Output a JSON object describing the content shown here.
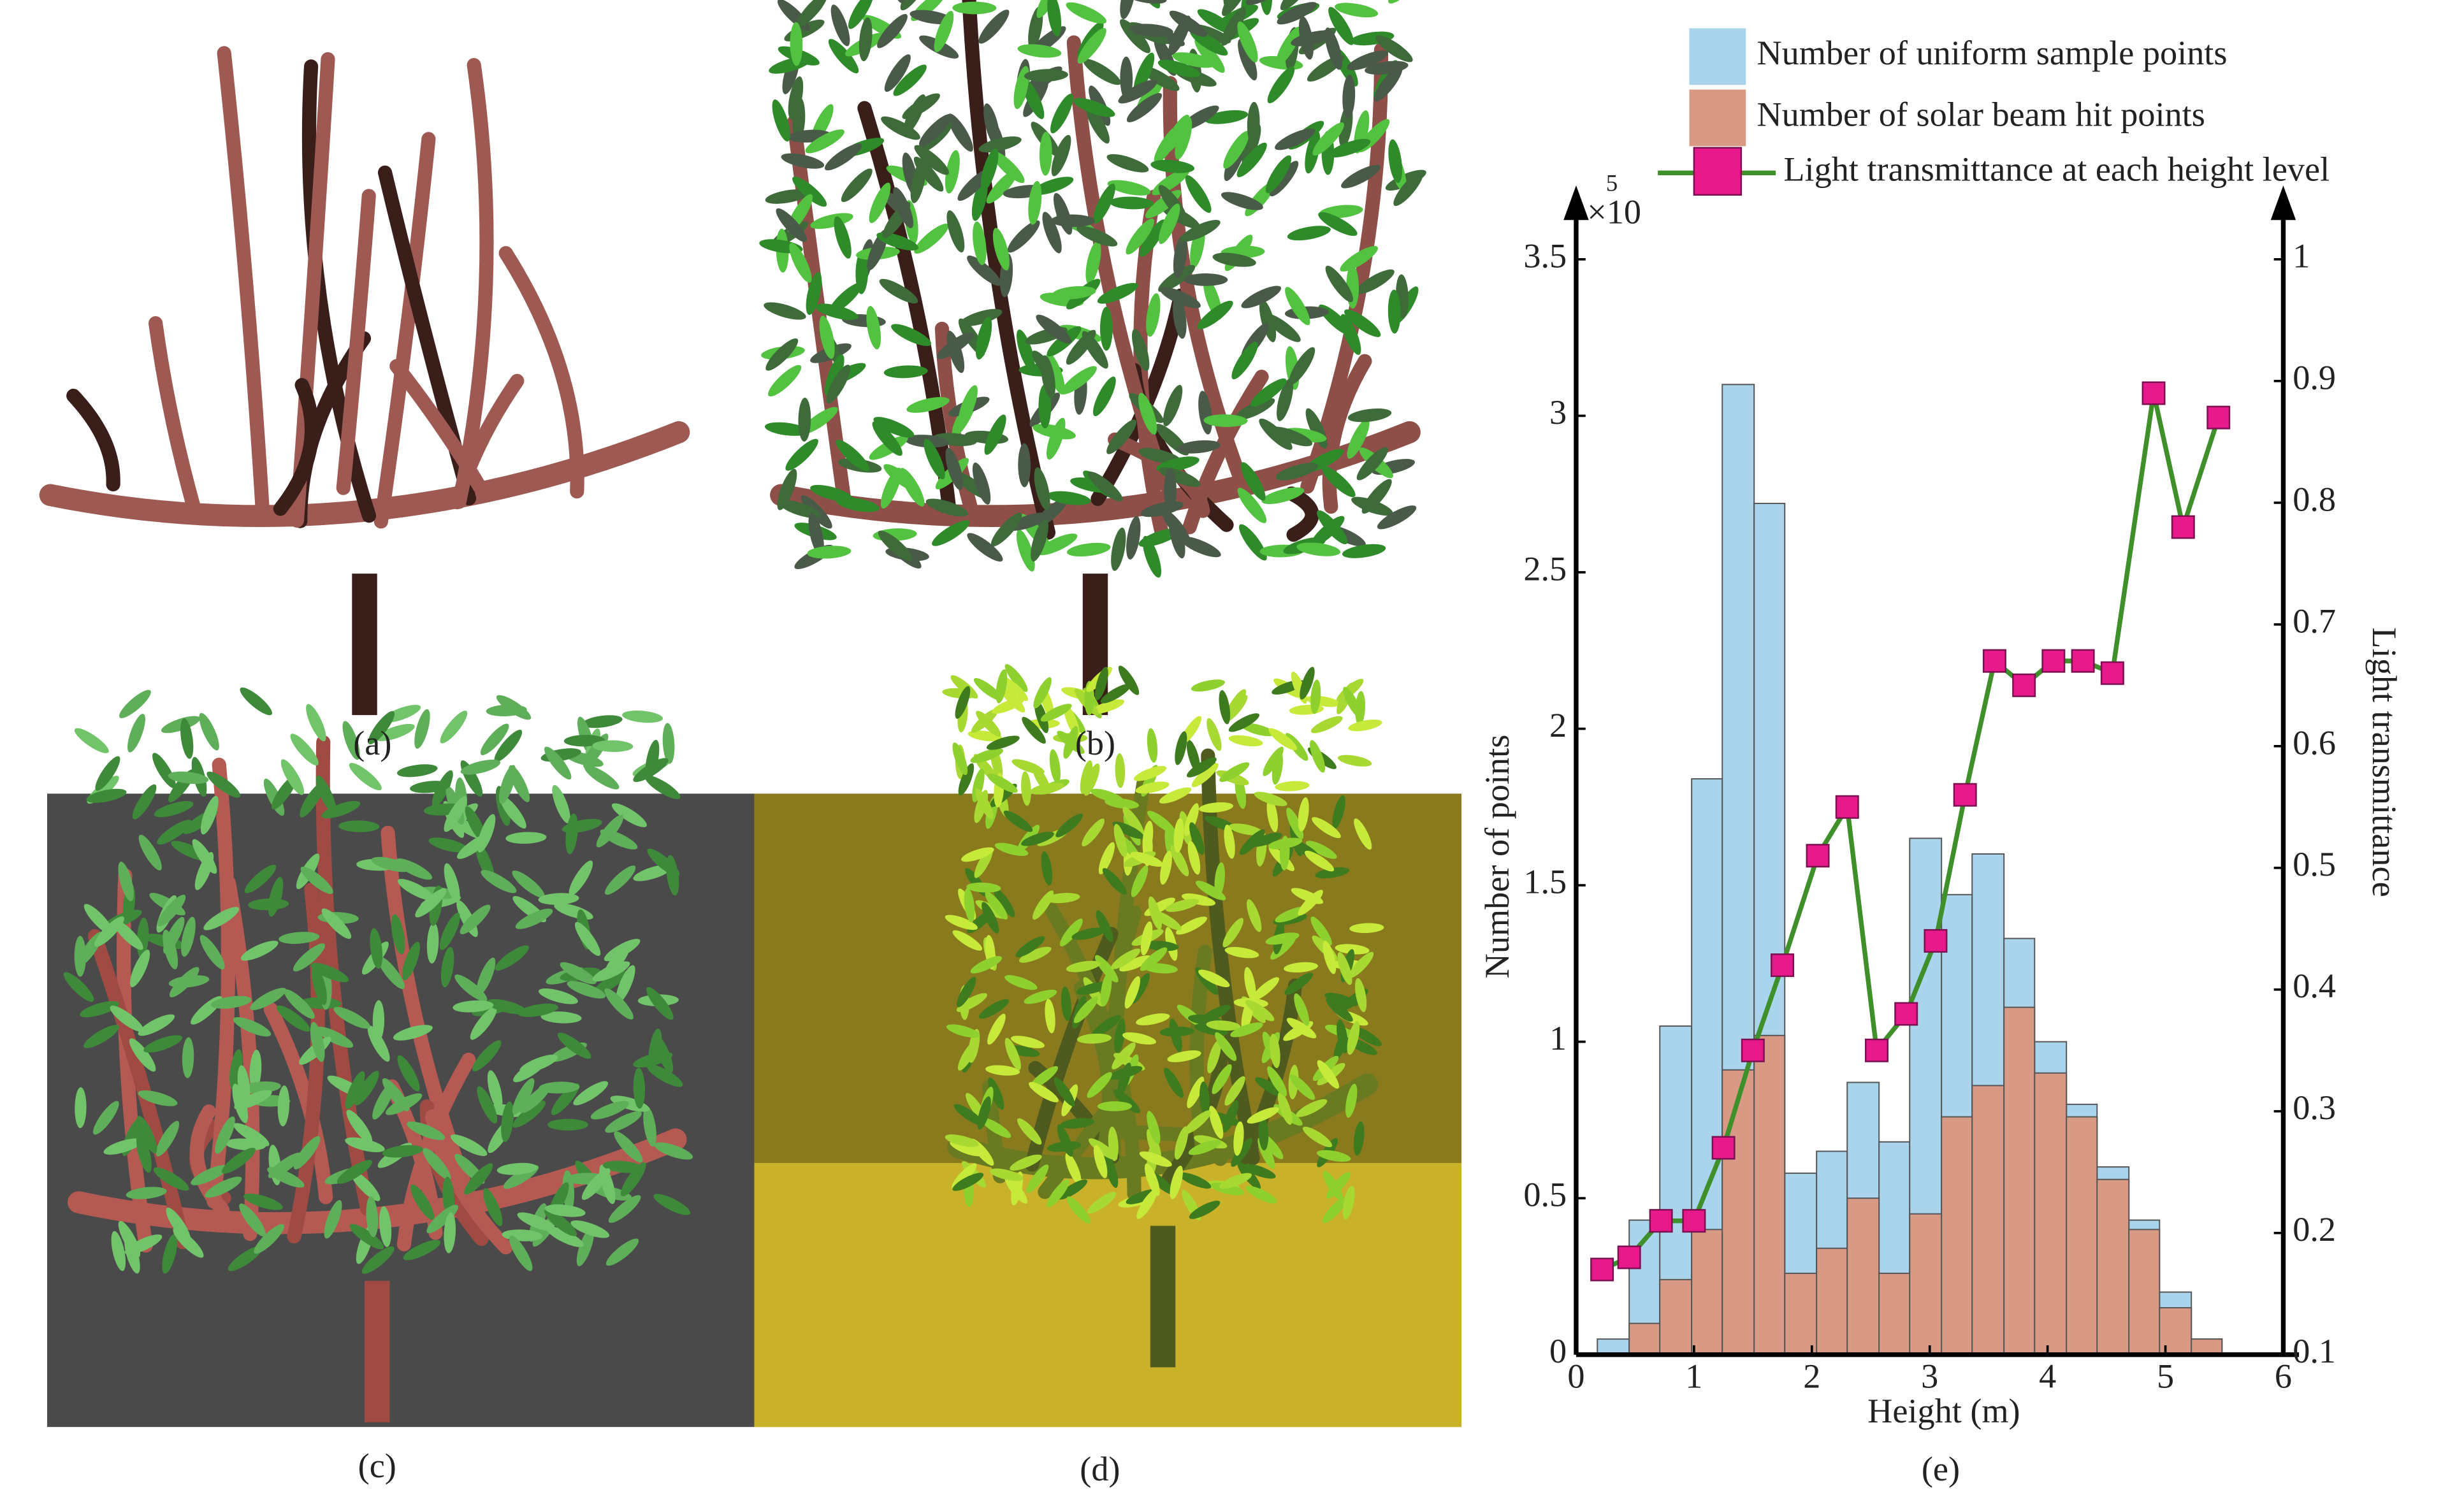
{
  "panel_labels": [
    "(a)",
    "(b)",
    "(c)",
    "(d)",
    "(e)"
  ],
  "chart_data": {
    "type": "histogram",
    "x_label": "Height (m)",
    "y_label": "Number of points",
    "y2_label": "Light transmittance",
    "y_multiplier": "×10",
    "y_multiplier_exp": "5",
    "bins": [
      0.18,
      0.45,
      0.71,
      0.98,
      1.24,
      1.51,
      1.77,
      2.04,
      2.3,
      2.57,
      2.83,
      3.1,
      3.36,
      3.63,
      3.89,
      4.16,
      4.42,
      4.69,
      4.95,
      5.22,
      5.48
    ],
    "series": [
      {
        "name": "Number of uniform sample points",
        "color": "#a9d4ec",
        "values": [
          0.05,
          0.43,
          1.05,
          1.84,
          3.1,
          2.72,
          0.58,
          0.65,
          0.87,
          0.68,
          1.65,
          1.47,
          1.6,
          1.33,
          1.0,
          0.8,
          0.6,
          0.43,
          0.2,
          0.05
        ]
      },
      {
        "name": "Number of solar beam hit points",
        "color": "#d99a85",
        "values": [
          0,
          0.1,
          0.24,
          0.4,
          0.91,
          1.02,
          0.26,
          0.34,
          0.5,
          0.26,
          0.45,
          0.76,
          0.86,
          1.11,
          0.9,
          0.76,
          0.56,
          0.4,
          0.15,
          0.05
        ]
      },
      {
        "name": "Light transmittance at each height level",
        "type": "line",
        "axis": "y2",
        "color": "#3f8f2a",
        "marker_color": "#e8198a",
        "x": [
          0.22,
          0.45,
          0.72,
          1.0,
          1.25,
          1.5,
          1.75,
          2.05,
          2.3,
          2.55,
          2.8,
          3.05,
          3.3,
          3.55,
          3.8,
          4.05,
          4.3,
          4.55,
          4.9,
          5.15,
          5.45
        ],
        "values": [
          0.17,
          0.18,
          0.21,
          0.21,
          0.27,
          0.35,
          0.42,
          0.51,
          0.55,
          0.35,
          0.38,
          0.44,
          0.56,
          0.67,
          0.65,
          0.67,
          0.67,
          0.66,
          0.89,
          0.78,
          0.87
        ]
      }
    ],
    "xlim": [
      0,
      6
    ],
    "xticks": [
      0,
      1,
      2,
      3,
      4,
      5,
      6
    ],
    "ylim": [
      0,
      3.5
    ],
    "yticks": [
      0,
      0.5,
      1,
      1.5,
      2,
      2.5,
      3,
      3.5
    ],
    "y2lim": [
      0.1,
      1
    ],
    "y2ticks": [
      0.1,
      0.2,
      0.3,
      0.4,
      0.5,
      0.6,
      0.7,
      0.8,
      0.9,
      1
    ]
  }
}
